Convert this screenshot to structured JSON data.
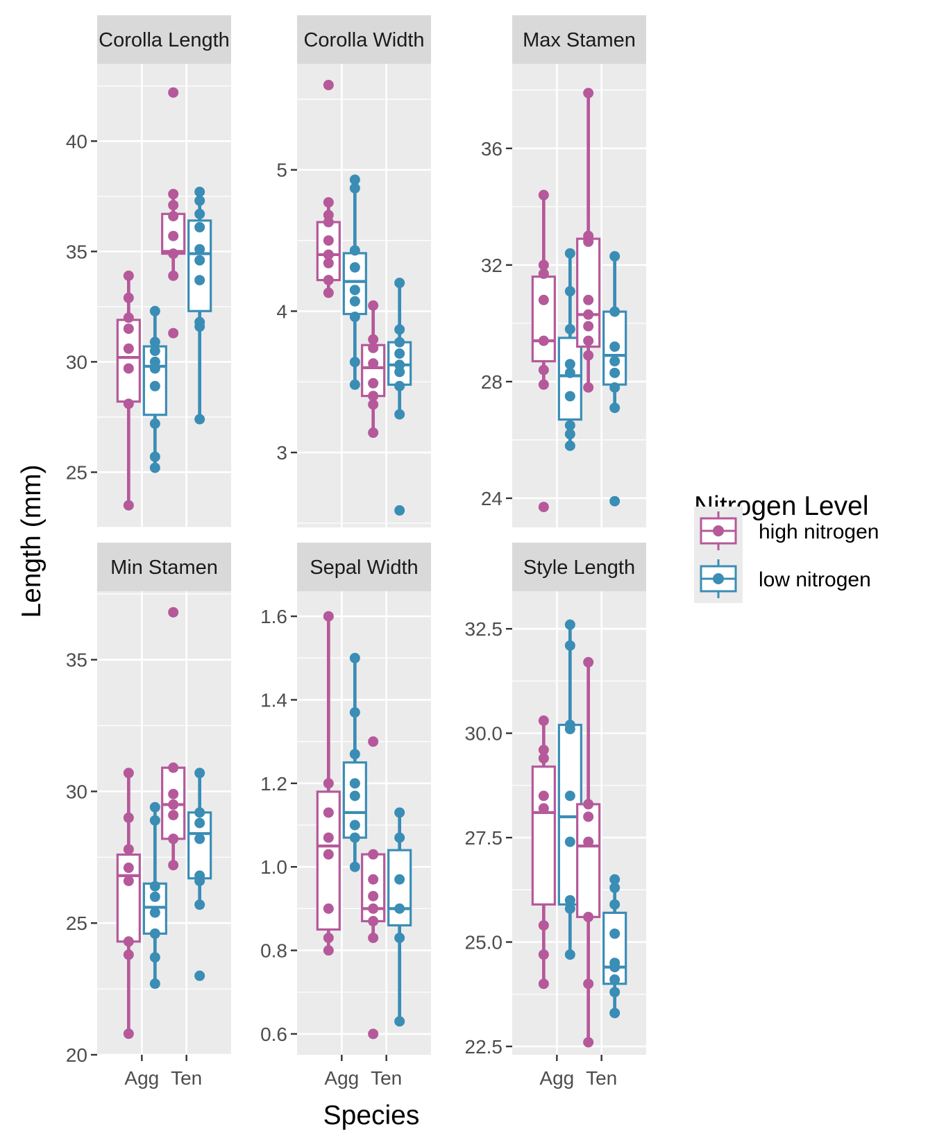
{
  "chart_data": {
    "type": "boxplot",
    "title": "",
    "xlabel": "Species",
    "ylabel": "Length (mm)",
    "categories": [
      "Agg",
      "Ten"
    ],
    "colors": {
      "high nitrogen": "#b5599a",
      "low nitrogen": "#3a8db5",
      "panel_background": "#ebebeb",
      "strip_background": "#d9d9d9",
      "grid": "#ffffff"
    },
    "legend": {
      "title": "Nitrogen Level",
      "position": "right",
      "entries": [
        "high nitrogen",
        "low nitrogen"
      ]
    },
    "grid": true,
    "panels": [
      {
        "title": "Corolla Length",
        "ylim": [
          22.5,
          43.5
        ],
        "yticks": [
          25,
          30,
          35,
          40
        ],
        "ytick_labels": [
          "25",
          "30",
          "35",
          "40"
        ],
        "groups": [
          {
            "species": "Agg",
            "series": "high nitrogen",
            "q1": 28.2,
            "median": 30.2,
            "q3": 31.9,
            "whisker_low": 23.5,
            "whisker_high": 33.9,
            "points": [
              23.5,
              28.1,
              29.7,
              30.6,
              31.5,
              32.0,
              32.9,
              33.9
            ]
          },
          {
            "species": "Agg",
            "series": "low nitrogen",
            "q1": 27.6,
            "median": 29.8,
            "q3": 30.7,
            "whisker_low": 25.2,
            "whisker_high": 32.3,
            "points": [
              25.2,
              25.7,
              27.2,
              28.9,
              29.7,
              30.0,
              30.5,
              30.9,
              32.3
            ]
          },
          {
            "species": "Ten",
            "series": "high nitrogen",
            "q1": 34.9,
            "median": 35.0,
            "q3": 36.7,
            "whisker_low": 33.9,
            "whisker_high": 37.6,
            "points": [
              31.3,
              33.9,
              34.9,
              35.7,
              36.6,
              37.1,
              37.6,
              42.2
            ]
          },
          {
            "species": "Ten",
            "series": "low nitrogen",
            "q1": 32.3,
            "median": 34.9,
            "q3": 36.4,
            "whisker_low": 27.4,
            "whisker_high": 37.7,
            "points": [
              27.4,
              31.6,
              31.8,
              33.7,
              34.6,
              35.1,
              36.1,
              36.7,
              37.3,
              37.7
            ]
          }
        ]
      },
      {
        "title": "Corolla Width",
        "ylim": [
          2.47,
          5.75
        ],
        "yticks": [
          3,
          4,
          5
        ],
        "ytick_labels": [
          "3",
          "4",
          "5"
        ],
        "groups": [
          {
            "species": "Agg",
            "series": "high nitrogen",
            "q1": 4.22,
            "median": 4.4,
            "q3": 4.63,
            "whisker_low": 4.13,
            "whisker_high": 4.77,
            "points": [
              4.13,
              4.22,
              4.34,
              4.4,
              4.5,
              4.63,
              4.68,
              4.77,
              5.6
            ]
          },
          {
            "species": "Agg",
            "series": "low nitrogen",
            "q1": 3.98,
            "median": 4.21,
            "q3": 4.41,
            "whisker_low": 3.48,
            "whisker_high": 4.93,
            "points": [
              3.48,
              3.64,
              3.96,
              4.07,
              4.15,
              4.31,
              4.43,
              4.87,
              4.93
            ]
          },
          {
            "species": "Ten",
            "series": "high nitrogen",
            "q1": 3.4,
            "median": 3.6,
            "q3": 3.76,
            "whisker_low": 3.14,
            "whisker_high": 4.04,
            "points": [
              3.14,
              3.34,
              3.4,
              3.49,
              3.63,
              3.74,
              3.8,
              4.04
            ]
          },
          {
            "species": "Ten",
            "series": "low nitrogen",
            "q1": 3.48,
            "median": 3.62,
            "q3": 3.78,
            "whisker_low": 3.27,
            "whisker_high": 4.2,
            "points": [
              2.59,
              3.27,
              3.47,
              3.57,
              3.62,
              3.7,
              3.78,
              3.87,
              4.2
            ]
          }
        ]
      },
      {
        "title": "Max Stamen",
        "ylim": [
          23.0,
          38.9
        ],
        "yticks": [
          24,
          28,
          32,
          36
        ],
        "ytick_labels": [
          "24",
          "28",
          "32",
          "36"
        ],
        "groups": [
          {
            "species": "Agg",
            "series": "high nitrogen",
            "q1": 28.7,
            "median": 29.4,
            "q3": 31.6,
            "whisker_low": 27.9,
            "whisker_high": 34.4,
            "points": [
              23.7,
              27.9,
              28.4,
              29.4,
              30.8,
              31.7,
              32.0,
              34.4
            ]
          },
          {
            "species": "Agg",
            "series": "low nitrogen",
            "q1": 26.7,
            "median": 28.2,
            "q3": 29.5,
            "whisker_low": 25.8,
            "whisker_high": 32.4,
            "points": [
              25.8,
              26.2,
              26.5,
              27.5,
              28.3,
              28.6,
              29.8,
              31.1,
              32.4
            ]
          },
          {
            "species": "Ten",
            "series": "high nitrogen",
            "q1": 29.2,
            "median": 30.3,
            "q3": 32.9,
            "whisker_low": 27.8,
            "whisker_high": 37.9,
            "points": [
              27.8,
              28.9,
              29.4,
              29.9,
              30.3,
              30.8,
              32.8,
              33.0,
              37.9
            ]
          },
          {
            "species": "Ten",
            "series": "low nitrogen",
            "q1": 27.9,
            "median": 28.9,
            "q3": 30.4,
            "whisker_low": 27.1,
            "whisker_high": 32.3,
            "points": [
              23.9,
              27.1,
              27.8,
              28.3,
              28.7,
              29.2,
              30.4,
              32.3
            ]
          }
        ]
      },
      {
        "title": "Min Stamen",
        "ylim": [
          20.0,
          37.6
        ],
        "yticks": [
          20,
          25,
          30,
          35
        ],
        "ytick_labels": [
          "20",
          "25",
          "30",
          "35"
        ],
        "groups": [
          {
            "species": "Agg",
            "series": "high nitrogen",
            "q1": 24.3,
            "median": 26.8,
            "q3": 27.6,
            "whisker_low": 20.8,
            "whisker_high": 30.7,
            "points": [
              20.8,
              23.8,
              24.3,
              26.6,
              27.1,
              27.8,
              29.0,
              30.7
            ]
          },
          {
            "species": "Agg",
            "series": "low nitrogen",
            "q1": 24.6,
            "median": 25.6,
            "q3": 26.5,
            "whisker_low": 22.7,
            "whisker_high": 29.4,
            "points": [
              22.7,
              23.7,
              24.6,
              25.4,
              26.0,
              26.4,
              28.9,
              29.4
            ]
          },
          {
            "species": "Ten",
            "series": "high nitrogen",
            "q1": 28.2,
            "median": 29.5,
            "q3": 30.9,
            "whisker_low": 27.2,
            "whisker_high": 30.9,
            "points": [
              27.2,
              28.2,
              29.1,
              29.5,
              29.9,
              30.9,
              36.8
            ]
          },
          {
            "species": "Ten",
            "series": "low nitrogen",
            "q1": 26.7,
            "median": 28.4,
            "q3": 29.2,
            "whisker_low": 25.7,
            "whisker_high": 30.7,
            "points": [
              23.0,
              25.7,
              26.6,
              26.8,
              28.2,
              28.8,
              29.2,
              30.7
            ]
          }
        ]
      },
      {
        "title": "Sepal Width",
        "ylim": [
          0.55,
          1.66
        ],
        "yticks": [
          0.6,
          0.8,
          1.0,
          1.2,
          1.4,
          1.6
        ],
        "ytick_labels": [
          "0.6",
          "0.8",
          "1.0",
          "1.2",
          "1.4",
          "1.6"
        ],
        "groups": [
          {
            "species": "Agg",
            "series": "high nitrogen",
            "q1": 0.85,
            "median": 1.05,
            "q3": 1.18,
            "whisker_low": 0.8,
            "whisker_high": 1.6,
            "points": [
              0.8,
              0.83,
              0.9,
              1.03,
              1.07,
              1.13,
              1.2,
              1.6
            ]
          },
          {
            "species": "Agg",
            "series": "low nitrogen",
            "q1": 1.07,
            "median": 1.13,
            "q3": 1.25,
            "whisker_low": 1.0,
            "whisker_high": 1.5,
            "points": [
              1.0,
              1.07,
              1.1,
              1.17,
              1.2,
              1.27,
              1.37,
              1.5
            ]
          },
          {
            "species": "Ten",
            "series": "high nitrogen",
            "q1": 0.87,
            "median": 0.9,
            "q3": 1.03,
            "whisker_low": 0.83,
            "whisker_high": 1.03,
            "points": [
              0.6,
              0.83,
              0.87,
              0.9,
              0.93,
              0.97,
              1.03,
              1.3
            ]
          },
          {
            "species": "Ten",
            "series": "low nitrogen",
            "q1": 0.86,
            "median": 0.9,
            "q3": 1.04,
            "whisker_low": 0.63,
            "whisker_high": 1.13,
            "points": [
              0.63,
              0.83,
              0.9,
              0.97,
              1.07,
              1.13
            ]
          }
        ]
      },
      {
        "title": "Style Length",
        "ylim": [
          22.3,
          33.4
        ],
        "yticks": [
          22.5,
          25.0,
          27.5,
          30.0,
          32.5
        ],
        "ytick_labels": [
          "22.5",
          "25.0",
          "27.5",
          "30.0",
          "32.5"
        ],
        "groups": [
          {
            "species": "Agg",
            "series": "high nitrogen",
            "q1": 25.9,
            "median": 28.1,
            "q3": 29.2,
            "whisker_low": 24.0,
            "whisker_high": 30.3,
            "points": [
              24.0,
              24.7,
              25.4,
              28.2,
              28.5,
              29.4,
              29.6,
              30.3
            ]
          },
          {
            "species": "Agg",
            "series": "low nitrogen",
            "q1": 25.9,
            "median": 28.0,
            "q3": 30.2,
            "whisker_low": 24.7,
            "whisker_high": 32.6,
            "points": [
              24.7,
              25.8,
              26.0,
              27.4,
              28.5,
              30.1,
              30.2,
              32.1,
              32.6
            ]
          },
          {
            "species": "Ten",
            "series": "high nitrogen",
            "q1": 25.6,
            "median": 27.3,
            "q3": 28.3,
            "whisker_low": 22.6,
            "whisker_high": 31.7,
            "points": [
              22.6,
              24.0,
              25.6,
              27.4,
              28.0,
              28.3,
              31.7
            ]
          },
          {
            "species": "Ten",
            "series": "low nitrogen",
            "q1": 24.0,
            "median": 24.4,
            "q3": 25.7,
            "whisker_low": 23.3,
            "whisker_high": 26.5,
            "points": [
              23.3,
              23.8,
              24.1,
              24.4,
              24.5,
              25.2,
              25.9,
              26.3,
              26.5
            ]
          }
        ]
      }
    ]
  }
}
